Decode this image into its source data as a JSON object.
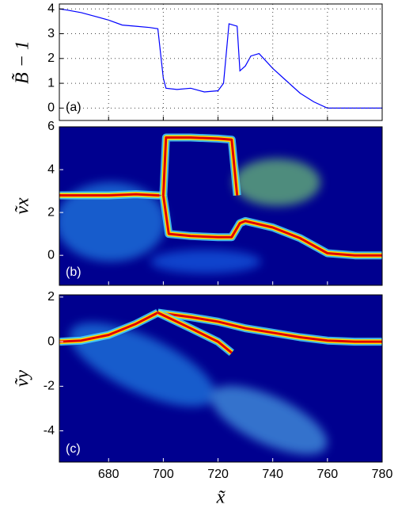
{
  "chart_data": [
    {
      "type": "line",
      "annotation": "(a)",
      "y_label": "B̃ − 1",
      "xlim": [
        662,
        780
      ],
      "xticks": [
        680,
        700,
        720,
        740,
        760,
        780
      ],
      "ylim": [
        -0.5,
        4.2
      ],
      "yticks": [
        0,
        1,
        2,
        3,
        4
      ],
      "grid": true,
      "background": "#ffffff",
      "series": [
        {
          "color": "#0000ff",
          "x": [
            662,
            665,
            670,
            675,
            680,
            685,
            690,
            695,
            698,
            700,
            701,
            705,
            710,
            715,
            720,
            722,
            724,
            727,
            728,
            730,
            732,
            735,
            740,
            745,
            750,
            755,
            760,
            770,
            780
          ],
          "values": [
            4.0,
            3.95,
            3.85,
            3.7,
            3.55,
            3.35,
            3.3,
            3.25,
            3.2,
            1.2,
            0.8,
            0.75,
            0.8,
            0.65,
            0.7,
            1.0,
            3.4,
            3.3,
            1.5,
            1.7,
            2.1,
            2.2,
            1.6,
            1.1,
            0.6,
            0.25,
            0.0,
            0.0,
            0.0
          ]
        }
      ]
    },
    {
      "type": "phase",
      "annotation": "(b)",
      "y_label": "ṽx",
      "xlim": [
        662,
        780
      ],
      "xticks": [
        680,
        700,
        720,
        740,
        760,
        780
      ],
      "ylim": [
        -1.4,
        6
      ],
      "yticks": [
        0,
        2,
        4,
        6
      ],
      "grid": false,
      "background": "#00008f",
      "series": [
        {
          "color": "#e00000",
          "x": [
            662,
            680,
            690,
            698,
            700
          ],
          "values": [
            2.8,
            2.8,
            2.85,
            2.8,
            2.8
          ]
        },
        {
          "color": "#e00000",
          "x": [
            700,
            701,
            710,
            720,
            725,
            727
          ],
          "values": [
            2.8,
            5.5,
            5.5,
            5.45,
            5.4,
            2.8
          ]
        },
        {
          "color": "#e00000",
          "x": [
            700,
            702,
            710,
            720,
            725,
            728,
            730,
            740,
            750,
            760,
            770,
            780
          ],
          "values": [
            2.8,
            1.0,
            0.9,
            0.85,
            0.85,
            1.5,
            1.6,
            1.3,
            0.8,
            0.1,
            0.0,
            0.0
          ]
        }
      ]
    },
    {
      "type": "phase",
      "annotation": "(c)",
      "y_label": "ṽy",
      "x_label": "x̃",
      "xlim": [
        662,
        780
      ],
      "xticks": [
        680,
        700,
        720,
        740,
        760,
        780
      ],
      "ylim": [
        -5.4,
        2.1
      ],
      "yticks": [
        -4,
        -2,
        0,
        2
      ],
      "grid": false,
      "background": "#00008f",
      "series": [
        {
          "color": "#e00000",
          "x": [
            662,
            670,
            680,
            690,
            698
          ],
          "values": [
            0.0,
            0.05,
            0.3,
            0.8,
            1.3
          ]
        },
        {
          "color": "#e00000",
          "x": [
            698,
            710,
            720,
            730,
            740,
            750,
            760,
            770,
            780
          ],
          "values": [
            1.3,
            1.1,
            0.9,
            0.6,
            0.4,
            0.2,
            0.05,
            0.0,
            0.0
          ]
        },
        {
          "color": "#e00000",
          "x": [
            698,
            710,
            720,
            725
          ],
          "values": [
            1.3,
            0.6,
            0.0,
            -0.5
          ]
        }
      ]
    }
  ]
}
